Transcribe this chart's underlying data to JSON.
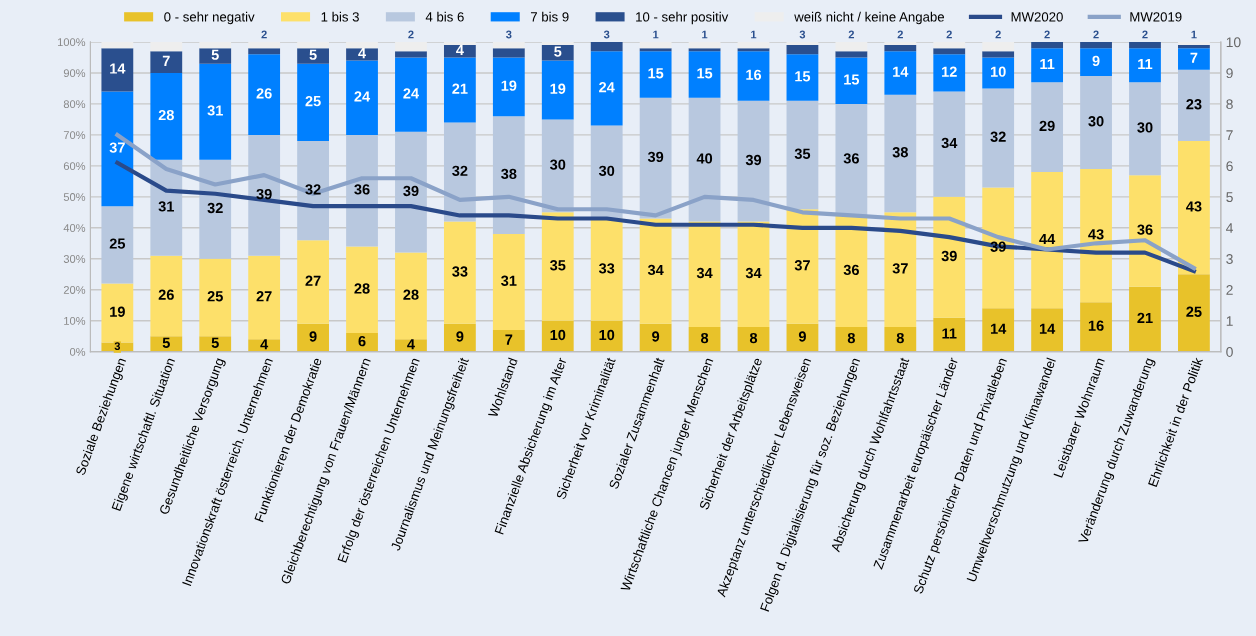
{
  "chart_data": {
    "type": "bar",
    "stacked": true,
    "categories": [
      "Soziale Beziehungen",
      "Eigene wirtschaftl. Situation",
      "Gesundheitliche Versorgung",
      "Innovationskraft österreich. Unternehmen",
      "Funktionieren der Demokratie",
      "Gleichberechtigung von Frauen/Männern",
      "Erfolg der österreichen Unternehmen",
      "Journalismus und Meinungsfreiheit",
      "Wohlstand",
      "Finanzielle Absicherung im Alter",
      "Sicherheit vor Kriminalität",
      "Sozialer Zusammenhalt",
      "Wirtschaftliche Chancen junger Menschen",
      "Sicherheit der Arbeitsplätze",
      "Akzeptanz unterschiedlicher Lebensweisen",
      "Folgen d. Digitalisierung für soz. Beziehungen",
      "Absicherung durch Wohlfahrtsstaat",
      "Zusammenarbeit europäischer Länder",
      "Schutz persönlicher Daten und Privatleben",
      "Umweltverschmutzung und Klimawandel",
      "Leistbarer Wohnraum",
      "Veränderung durch Zuwanderung",
      "Ehrlichkeit in der Politik"
    ],
    "series": [
      {
        "name": "0 - sehr negativ",
        "color": "#e8c22a",
        "values": [
          3,
          5,
          5,
          4,
          9,
          6,
          4,
          9,
          7,
          10,
          10,
          9,
          8,
          8,
          9,
          8,
          8,
          11,
          14,
          14,
          16,
          21,
          25
        ],
        "value_labels": [
          "3",
          "5",
          "5",
          "4",
          "9",
          "6",
          "4",
          "9",
          "7",
          "10",
          "10",
          "9",
          "8",
          "8",
          "9",
          "8",
          "8",
          "11",
          "14",
          "14",
          "16",
          "21",
          "25"
        ]
      },
      {
        "name": "1 bis 3",
        "color": "#fde06a",
        "values": [
          19,
          26,
          25,
          27,
          27,
          28,
          28,
          33,
          31,
          35,
          33,
          34,
          34,
          34,
          37,
          36,
          37,
          39,
          39,
          44,
          43,
          36,
          43
        ],
        "value_labels": [
          "19",
          "26",
          "25",
          "27",
          "27",
          "28",
          "28",
          "33",
          "31",
          "35",
          "33",
          "34",
          "34",
          "34",
          "37",
          "36",
          "37",
          "39",
          "39",
          "44",
          "43",
          "36",
          "43"
        ]
      },
      {
        "name": "4 bis 6",
        "color": "#b8c8df",
        "values": [
          25,
          31,
          32,
          39,
          32,
          36,
          39,
          32,
          38,
          30,
          30,
          39,
          40,
          39,
          35,
          36,
          38,
          34,
          32,
          29,
          30,
          30,
          23
        ],
        "value_labels": [
          "25",
          "31",
          "32",
          "39",
          "32",
          "36",
          "39",
          "32",
          "38",
          "30",
          "30",
          "39",
          "40",
          "39",
          "35",
          "36",
          "38",
          "34",
          "32",
          "29",
          "30",
          "30",
          "23"
        ]
      },
      {
        "name": "7 bis 9",
        "color": "#0080ff",
        "values": [
          37,
          28,
          31,
          26,
          25,
          24,
          24,
          21,
          19,
          19,
          24,
          15,
          15,
          16,
          15,
          15,
          14,
          12,
          10,
          11,
          9,
          11,
          7
        ],
        "value_labels": [
          "37",
          "28",
          "31",
          "26",
          "25",
          "24",
          "24",
          "21",
          "19",
          "19",
          "24",
          "15",
          "15",
          "16",
          "15",
          "15",
          "14",
          "12",
          "10",
          "11",
          "9",
          "11",
          "7"
        ]
      },
      {
        "name": "10 - sehr positiv",
        "color": "#2a4f8e",
        "values": [
          14,
          7,
          5,
          2,
          5,
          4,
          2,
          4,
          3,
          5,
          3,
          1,
          1,
          1,
          3,
          2,
          2,
          2,
          2,
          2,
          2,
          2,
          1
        ],
        "value_labels": [
          "14",
          "7",
          "5",
          "2",
          "5",
          "4",
          "2",
          "4",
          "3",
          "5",
          "3",
          "1",
          "1",
          "1",
          "3",
          "2",
          "2",
          "2",
          "2",
          "2",
          "2",
          "2",
          "1"
        ]
      },
      {
        "name": "weiß nicht / keine Angabe",
        "color": "#eeeeee",
        "values": [
          2,
          3,
          2,
          2,
          2,
          2,
          3,
          1,
          2,
          1,
          0,
          2,
          2,
          2,
          1,
          3,
          1,
          2,
          3,
          0,
          0,
          0,
          1
        ]
      },
      {
        "name": "MW2020",
        "type": "line",
        "axis": "y2",
        "color": "#2a4a8a",
        "values": [
          6.1,
          5.2,
          5.1,
          4.9,
          4.7,
          4.7,
          4.7,
          4.4,
          4.4,
          4.3,
          4.3,
          4.1,
          4.1,
          4.1,
          4.0,
          4.0,
          3.9,
          3.7,
          3.4,
          3.3,
          3.2,
          3.2,
          2.6
        ]
      },
      {
        "name": "MW2019",
        "type": "line",
        "axis": "y2",
        "color": "#8aa2c8",
        "values": [
          7.0,
          5.9,
          5.4,
          5.7,
          5.1,
          5.6,
          5.6,
          4.9,
          5.0,
          4.6,
          4.6,
          4.4,
          5.0,
          4.9,
          4.5,
          4.4,
          4.3,
          4.3,
          3.7,
          3.3,
          3.5,
          3.6,
          2.7
        ]
      }
    ],
    "ylim": [
      0,
      100
    ],
    "yticks": [
      {
        "value": 0,
        "label": "0%"
      },
      {
        "value": 10,
        "label": "10%"
      },
      {
        "value": 20,
        "label": "20%"
      },
      {
        "value": 30,
        "label": "30%"
      },
      {
        "value": 40,
        "label": "40%"
      },
      {
        "value": 50,
        "label": "50%"
      },
      {
        "value": 60,
        "label": "60%"
      },
      {
        "value": 70,
        "label": "70%"
      },
      {
        "value": 80,
        "label": "80%"
      },
      {
        "value": 90,
        "label": "90%"
      },
      {
        "value": 100,
        "label": "100%"
      }
    ],
    "y2lim": [
      0,
      10
    ],
    "y2ticks": [
      0,
      1,
      2,
      3,
      4,
      5,
      6,
      7,
      8,
      9,
      10
    ],
    "grid": "y",
    "legend": "top",
    "marker": "none",
    "line_style": "solid"
  }
}
